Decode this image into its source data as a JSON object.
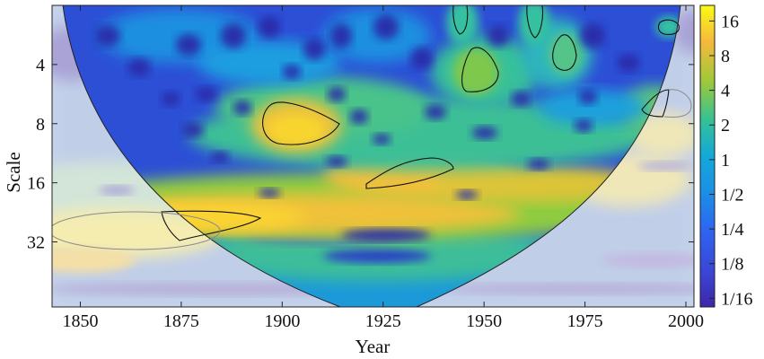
{
  "chart_data": {
    "type": "heatmap",
    "title": "",
    "xlabel": "Year",
    "ylabel": "Scale",
    "xlim": [
      1843,
      2002
    ],
    "ylim_log2": [
      1,
      6.1
    ],
    "y_scale": "log2 (reversed)",
    "x_ticks": [
      {
        "value": 1850,
        "label": "1850"
      },
      {
        "value": 1875,
        "label": "1875"
      },
      {
        "value": 1900,
        "label": "1900"
      },
      {
        "value": 1925,
        "label": "1925"
      },
      {
        "value": 1950,
        "label": "1950"
      },
      {
        "value": 1975,
        "label": "1975"
      },
      {
        "value": 2000,
        "label": "2000"
      }
    ],
    "y_ticks": [
      {
        "value": 4,
        "label": "4"
      },
      {
        "value": 8,
        "label": "8"
      },
      {
        "value": 16,
        "label": "16"
      },
      {
        "value": 32,
        "label": "32"
      }
    ],
    "colorbar": {
      "scale": "log2",
      "ticks": [
        {
          "value": 16,
          "label": "16"
        },
        {
          "value": 8,
          "label": "8"
        },
        {
          "value": 4,
          "label": "4"
        },
        {
          "value": 2,
          "label": "2"
        },
        {
          "value": 1,
          "label": "1"
        },
        {
          "value": 0.5,
          "label": "1/2"
        },
        {
          "value": 0.25,
          "label": "1/4"
        },
        {
          "value": 0.125,
          "label": "1/8"
        },
        {
          "value": 0.0625,
          "label": "1/16"
        }
      ],
      "colormap": [
        "#3e26a8",
        "#2f63f2",
        "#13a9d9",
        "#34c195",
        "#9fc938",
        "#f5b93c",
        "#f9fb15"
      ]
    },
    "power_features": [
      {
        "year": 1865,
        "scale": 24,
        "power": 12,
        "note": "high power band at scale ~24, 1845-1900"
      },
      {
        "year": 1903,
        "scale": 8,
        "power": 10,
        "note": "significant region scale 6-10, 1895-1915"
      },
      {
        "year": 1935,
        "scale": 13,
        "power": 8,
        "note": "significant region scale 11-15, 1920-1950"
      },
      {
        "year": 1948,
        "scale": 4.5,
        "power": 3,
        "note": "significant region scale 3.5-5.5"
      },
      {
        "year": 1995,
        "scale": 2,
        "power": 3,
        "note": "significant region scale 1.8-2.3"
      },
      {
        "year": 1993,
        "scale": 6.5,
        "power": 3,
        "note": "significant region scale 5.5-8"
      }
    ]
  }
}
